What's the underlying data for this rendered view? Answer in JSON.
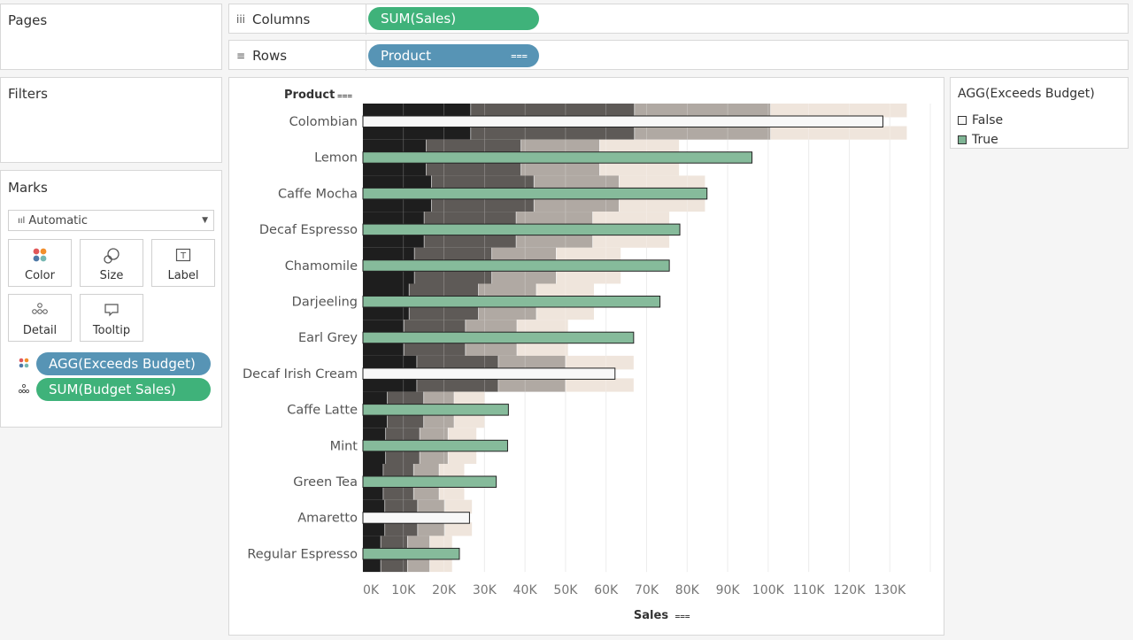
{
  "pages": {
    "title": "Pages"
  },
  "columns": {
    "label": "Columns",
    "pill": "SUM(Sales)"
  },
  "rows": {
    "label": "Rows",
    "pill": "Product"
  },
  "filters": {
    "title": "Filters"
  },
  "marks": {
    "title": "Marks",
    "type": "Automatic",
    "buttons": {
      "color": "Color",
      "size": "Size",
      "label": "Label",
      "detail": "Detail",
      "tooltip": "Tooltip"
    },
    "pills": [
      {
        "label": "AGG(Exceeds Budget)",
        "icon": "color-dots-icon"
      },
      {
        "label": "SUM(Budget Sales)",
        "icon": "detail-dots-icon"
      }
    ]
  },
  "legend": {
    "title": "AGG(Exceeds Budget)",
    "items": [
      {
        "label": "False",
        "color": "#f8f8f8"
      },
      {
        "label": "True",
        "color": "#7fb595"
      }
    ]
  },
  "chart_data": {
    "type": "bar",
    "title": "",
    "row_header": "Product",
    "xlabel": "Sales",
    "xlim": [
      0,
      140000
    ],
    "x_ticks": [
      "0K",
      "10K",
      "20K",
      "30K",
      "40K",
      "50K",
      "60K",
      "70K",
      "80K",
      "90K",
      "100K",
      "110K",
      "120K",
      "130K"
    ],
    "categories": [
      "Colombian",
      "Lemon",
      "Caffe Mocha",
      "Decaf Espresso",
      "Chamomile",
      "Darjeeling",
      "Earl Grey",
      "Decaf Irish Cream",
      "Caffe Latte",
      "Mint",
      "Green Tea",
      "Amaretto",
      "Regular Espresso"
    ],
    "series": [
      {
        "name": "SUM(Sales)",
        "values": [
          128300,
          96000,
          84900,
          78200,
          75600,
          73300,
          66800,
          62200,
          35900,
          35700,
          32900,
          26300,
          23800
        ]
      },
      {
        "name": "AGG(Exceeds Budget)",
        "values": [
          "False",
          "True",
          "True",
          "True",
          "True",
          "True",
          "True",
          "False",
          "True",
          "True",
          "True",
          "False",
          "True"
        ]
      }
    ],
    "budget_bands": [
      [
        26600,
        67000,
        100600,
        134200
      ],
      [
        15600,
        39000,
        58400,
        78000
      ],
      [
        16900,
        42200,
        63200,
        84400
      ],
      [
        15100,
        37800,
        56700,
        75600
      ],
      [
        12700,
        31800,
        47700,
        63600
      ],
      [
        11400,
        28500,
        42800,
        57000
      ],
      [
        10100,
        25300,
        38000,
        50600
      ],
      [
        13300,
        33400,
        50000,
        66800
      ],
      [
        6000,
        15000,
        22500,
        30000
      ],
      [
        5600,
        14000,
        21000,
        28000
      ],
      [
        5000,
        12500,
        18800,
        25000
      ],
      [
        5400,
        13500,
        20200,
        26900
      ],
      [
        4400,
        11000,
        16500,
        22000
      ]
    ],
    "band_colors": [
      "#1e1e1e",
      "#5e5a57",
      "#b0a9a3",
      "#efe5dc"
    ],
    "grid": true
  }
}
